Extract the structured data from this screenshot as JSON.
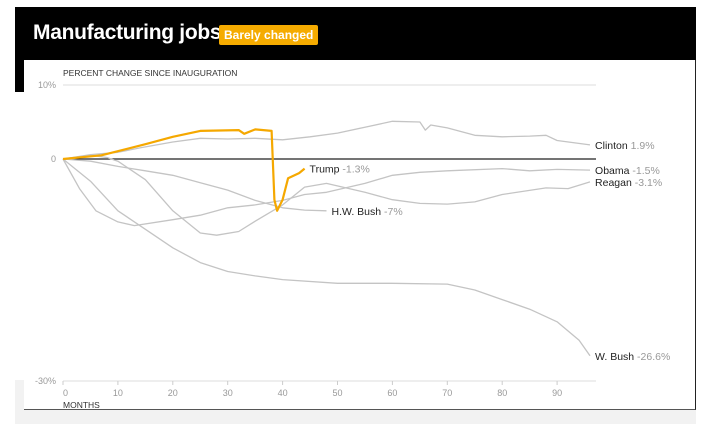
{
  "header": {
    "title": "Manufacturing jobs",
    "badge": "Barely changed"
  },
  "colors": {
    "highlight": "#f5a800",
    "others": "#c4c4c4",
    "zero_line": "#222222"
  },
  "chart_data": {
    "type": "line",
    "ylabel": "PERCENT CHANGE SINCE INAUGURATION",
    "xlabel": "MONTHS",
    "xlim": [
      0,
      96
    ],
    "ylim": [
      -30,
      10
    ],
    "yticks": [
      {
        "v": 10,
        "label": "10%"
      },
      {
        "v": 0,
        "label": "0"
      },
      {
        "v": -30,
        "label": "-30%"
      }
    ],
    "xticks": [
      0,
      10,
      20,
      30,
      40,
      50,
      60,
      70,
      80,
      90
    ],
    "series": [
      {
        "name": "Clinton",
        "value_label": "1.9%",
        "highlight": false,
        "points": [
          [
            0,
            0
          ],
          [
            5,
            0.6
          ],
          [
            10,
            0.9
          ],
          [
            14,
            1.5
          ],
          [
            20,
            2.3
          ],
          [
            25,
            2.8
          ],
          [
            30,
            2.7
          ],
          [
            35,
            2.8
          ],
          [
            40,
            2.6
          ],
          [
            45,
            3.0
          ],
          [
            50,
            3.5
          ],
          [
            55,
            4.3
          ],
          [
            60,
            5.1
          ],
          [
            65,
            5.0
          ],
          [
            66,
            3.9
          ],
          [
            67,
            4.6
          ],
          [
            70,
            4.2
          ],
          [
            75,
            3.2
          ],
          [
            80,
            3.0
          ],
          [
            85,
            3.1
          ],
          [
            88,
            3.2
          ],
          [
            90,
            2.5
          ],
          [
            96,
            1.9
          ]
        ]
      },
      {
        "name": "Obama",
        "value_label": "-1.5%",
        "highlight": false,
        "points": [
          [
            0,
            0
          ],
          [
            3,
            -4
          ],
          [
            6,
            -7
          ],
          [
            10,
            -8.5
          ],
          [
            13,
            -9
          ],
          [
            20,
            -8.2
          ],
          [
            25,
            -7.6
          ],
          [
            30,
            -6.6
          ],
          [
            35,
            -6.2
          ],
          [
            40,
            -5.6
          ],
          [
            44,
            -4.8
          ],
          [
            48,
            -4.5
          ],
          [
            55,
            -3.3
          ],
          [
            60,
            -2.2
          ],
          [
            65,
            -1.8
          ],
          [
            70,
            -1.6
          ],
          [
            80,
            -1.3
          ],
          [
            85,
            -1.6
          ],
          [
            90,
            -1.4
          ],
          [
            96,
            -1.5
          ]
        ]
      },
      {
        "name": "Reagan",
        "value_label": "-3.1%",
        "highlight": false,
        "points": [
          [
            0,
            0
          ],
          [
            5,
            0.5
          ],
          [
            8,
            0.2
          ],
          [
            10,
            -0.3
          ],
          [
            15,
            -2.8
          ],
          [
            20,
            -7
          ],
          [
            25,
            -10
          ],
          [
            28,
            -10.3
          ],
          [
            32,
            -9.8
          ],
          [
            35,
            -8.4
          ],
          [
            40,
            -6.2
          ],
          [
            44,
            -3.8
          ],
          [
            48,
            -3.3
          ],
          [
            55,
            -4.5
          ],
          [
            60,
            -5.5
          ],
          [
            65,
            -6
          ],
          [
            70,
            -6.1
          ],
          [
            75,
            -5.8
          ],
          [
            80,
            -4.8
          ],
          [
            88,
            -3.9
          ],
          [
            92,
            -4.0
          ],
          [
            96,
            -3.1
          ]
        ]
      },
      {
        "name": "H.W. Bush",
        "value_label": "-7%",
        "highlight": false,
        "points": [
          [
            0,
            0
          ],
          [
            5,
            -0.3
          ],
          [
            10,
            -1
          ],
          [
            15,
            -1.6
          ],
          [
            20,
            -2.2
          ],
          [
            25,
            -3.2
          ],
          [
            30,
            -4.2
          ],
          [
            35,
            -5.6
          ],
          [
            40,
            -6.6
          ],
          [
            44,
            -6.9
          ],
          [
            48,
            -7
          ]
        ]
      },
      {
        "name": "W. Bush",
        "value_label": "-26.6%",
        "highlight": false,
        "points": [
          [
            0,
            0
          ],
          [
            5,
            -3
          ],
          [
            10,
            -7
          ],
          [
            15,
            -9.5
          ],
          [
            20,
            -12
          ],
          [
            25,
            -14
          ],
          [
            30,
            -15.2
          ],
          [
            35,
            -15.8
          ],
          [
            40,
            -16.3
          ],
          [
            50,
            -16.8
          ],
          [
            60,
            -16.8
          ],
          [
            70,
            -16.9
          ],
          [
            75,
            -17.7
          ],
          [
            80,
            -19
          ],
          [
            85,
            -20.3
          ],
          [
            90,
            -22
          ],
          [
            94,
            -24.5
          ],
          [
            96,
            -26.6
          ]
        ]
      },
      {
        "name": "Trump",
        "value_label": "-1.3%",
        "highlight": true,
        "points": [
          [
            0,
            0
          ],
          [
            7,
            0.5
          ],
          [
            15,
            2
          ],
          [
            20,
            3
          ],
          [
            25,
            3.8
          ],
          [
            32,
            3.9
          ],
          [
            33,
            3.4
          ],
          [
            35,
            4
          ],
          [
            38,
            3.8
          ],
          [
            38.5,
            -5.5
          ],
          [
            39,
            -7
          ],
          [
            40,
            -5.5
          ],
          [
            41,
            -2.6
          ],
          [
            43,
            -1.9
          ],
          [
            44,
            -1.3
          ]
        ]
      }
    ]
  }
}
